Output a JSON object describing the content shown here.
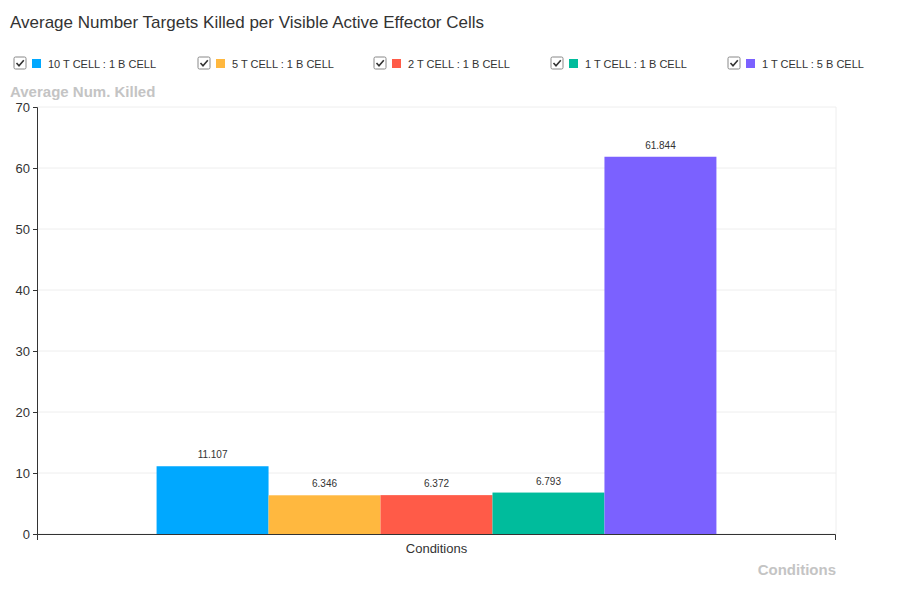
{
  "chart_data": {
    "type": "bar",
    "title": "Average Number Targets Killed per Visible Active Effector Cells",
    "y_label": "Average Num. Killed",
    "x_label": "Conditions",
    "categories": [
      "Conditions"
    ],
    "series": [
      {
        "name": "10 T CELL : 1 B CELL",
        "color": "#00a8ff",
        "values": [
          11.107
        ]
      },
      {
        "name": "5 T CELL : 1 B CELL",
        "color": "#ffb83f",
        "values": [
          6.346
        ]
      },
      {
        "name": "2 T CELL : 1 B CELL",
        "color": "#ff5b48",
        "values": [
          6.372
        ]
      },
      {
        "name": "1 T CELL : 1 B CELL",
        "color": "#00bc9c",
        "values": [
          6.793
        ]
      },
      {
        "name": "1 T CELL : 5 B CELL",
        "color": "#7b61ff",
        "values": [
          61.844
        ]
      }
    ],
    "ylim": [
      0,
      70
    ],
    "yticks": [
      0,
      10,
      20,
      30,
      40,
      50,
      60,
      70
    ],
    "grid": true,
    "legend": "top",
    "data_labels": true
  }
}
